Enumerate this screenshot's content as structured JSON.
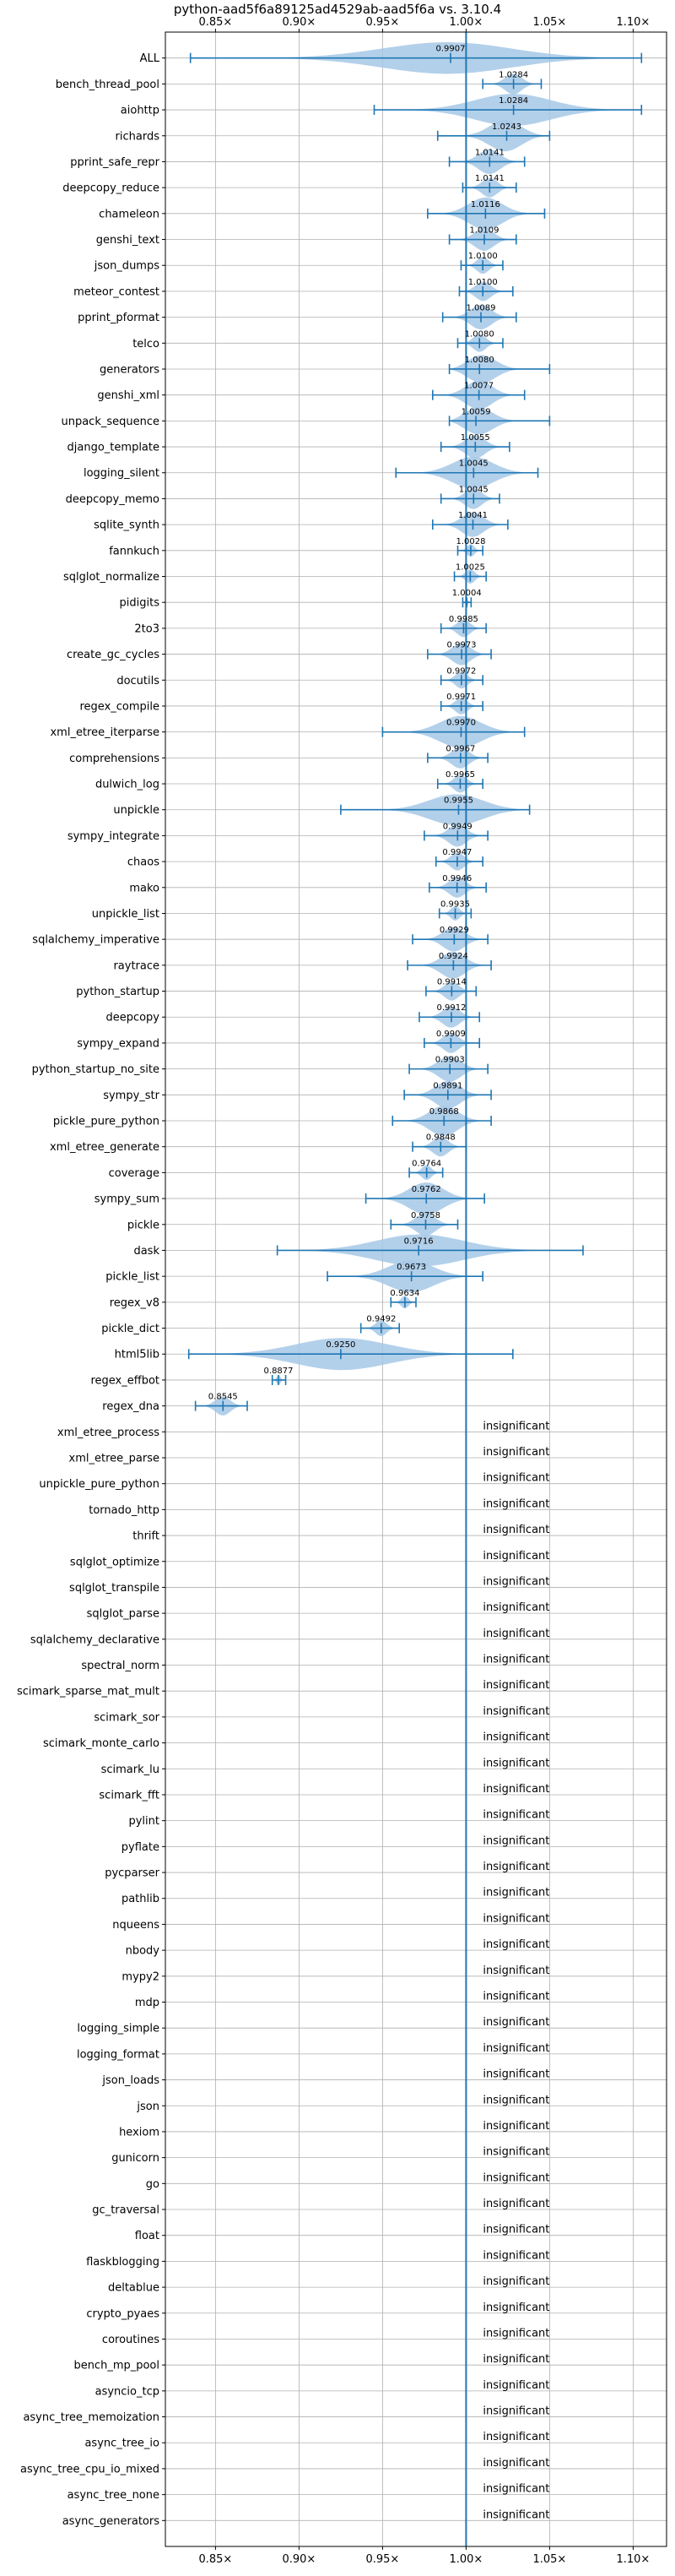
{
  "chart_data": {
    "type": "violin",
    "title": "python-aad5f6a89125ad4529ab-aad5f6a vs. 3.10.4",
    "xlim": [
      0.82,
      1.12
    ],
    "x_ticks": [
      {
        "value": 0.85,
        "label": "0.85×"
      },
      {
        "value": 0.9,
        "label": "0.90×"
      },
      {
        "value": 0.95,
        "label": "0.95×"
      },
      {
        "value": 1.0,
        "label": "1.00×"
      },
      {
        "value": 1.05,
        "label": "1.05×"
      },
      {
        "value": 1.1,
        "label": "1.10×"
      }
    ],
    "grid": true,
    "reference_line": 1.0,
    "colors": {
      "violin": "#a6c8e6",
      "line": "#1f77b4"
    },
    "insignificant_label": "insignificant",
    "benchmarks": [
      {
        "name": "ALL",
        "value": 0.9907,
        "label": "0.9907",
        "min": 0.835,
        "max": 1.105
      },
      {
        "name": "bench_thread_pool",
        "value": 1.0284,
        "label": "1.0284",
        "min": 1.01,
        "max": 1.045
      },
      {
        "name": "aiohttp",
        "value": 1.0284,
        "label": "1.0284",
        "min": 0.945,
        "max": 1.105
      },
      {
        "name": "richards",
        "value": 1.0243,
        "label": "1.0243",
        "min": 0.983,
        "max": 1.05
      },
      {
        "name": "pprint_safe_repr",
        "value": 1.0141,
        "label": "1.0141",
        "min": 0.99,
        "max": 1.035
      },
      {
        "name": "deepcopy_reduce",
        "value": 1.0141,
        "label": "1.0141",
        "min": 0.998,
        "max": 1.03
      },
      {
        "name": "chameleon",
        "value": 1.0116,
        "label": "1.0116",
        "min": 0.977,
        "max": 1.047
      },
      {
        "name": "genshi_text",
        "value": 1.0109,
        "label": "1.0109",
        "min": 0.99,
        "max": 1.03
      },
      {
        "name": "json_dumps",
        "value": 1.01,
        "label": "1.0100",
        "min": 0.997,
        "max": 1.022
      },
      {
        "name": "meteor_contest",
        "value": 1.01,
        "label": "1.0100",
        "min": 0.996,
        "max": 1.028
      },
      {
        "name": "pprint_pformat",
        "value": 1.0089,
        "label": "1.0089",
        "min": 0.986,
        "max": 1.03
      },
      {
        "name": "telco",
        "value": 1.008,
        "label": "1.0080",
        "min": 0.995,
        "max": 1.022
      },
      {
        "name": "generators",
        "value": 1.008,
        "label": "1.0080",
        "min": 0.99,
        "max": 1.05
      },
      {
        "name": "genshi_xml",
        "value": 1.0077,
        "label": "1.0077",
        "min": 0.98,
        "max": 1.035
      },
      {
        "name": "unpack_sequence",
        "value": 1.0059,
        "label": "1.0059",
        "min": 0.99,
        "max": 1.05
      },
      {
        "name": "django_template",
        "value": 1.0055,
        "label": "1.0055",
        "min": 0.985,
        "max": 1.026
      },
      {
        "name": "logging_silent",
        "value": 1.0045,
        "label": "1.0045",
        "min": 0.958,
        "max": 1.043
      },
      {
        "name": "deepcopy_memo",
        "value": 1.0045,
        "label": "1.0045",
        "min": 0.985,
        "max": 1.02
      },
      {
        "name": "sqlite_synth",
        "value": 1.0041,
        "label": "1.0041",
        "min": 0.98,
        "max": 1.025
      },
      {
        "name": "fannkuch",
        "value": 1.0028,
        "label": "1.0028",
        "min": 0.995,
        "max": 1.01
      },
      {
        "name": "sqlglot_normalize",
        "value": 1.0025,
        "label": "1.0025",
        "min": 0.993,
        "max": 1.012
      },
      {
        "name": "pidigits",
        "value": 1.0004,
        "label": "1.0004",
        "min": 0.998,
        "max": 1.003
      },
      {
        "name": "2to3",
        "value": 0.9985,
        "label": "0.9985",
        "min": 0.985,
        "max": 1.012
      },
      {
        "name": "create_gc_cycles",
        "value": 0.9973,
        "label": "0.9973",
        "min": 0.977,
        "max": 1.015
      },
      {
        "name": "docutils",
        "value": 0.9972,
        "label": "0.9972",
        "min": 0.985,
        "max": 1.01
      },
      {
        "name": "regex_compile",
        "value": 0.9971,
        "label": "0.9971",
        "min": 0.985,
        "max": 1.01
      },
      {
        "name": "xml_etree_iterparse",
        "value": 0.997,
        "label": "0.9970",
        "min": 0.95,
        "max": 1.035
      },
      {
        "name": "comprehensions",
        "value": 0.9967,
        "label": "0.9967",
        "min": 0.977,
        "max": 1.013
      },
      {
        "name": "dulwich_log",
        "value": 0.9965,
        "label": "0.9965",
        "min": 0.983,
        "max": 1.01
      },
      {
        "name": "unpickle",
        "value": 0.9955,
        "label": "0.9955",
        "min": 0.925,
        "max": 1.038
      },
      {
        "name": "sympy_integrate",
        "value": 0.9949,
        "label": "0.9949",
        "min": 0.975,
        "max": 1.013
      },
      {
        "name": "chaos",
        "value": 0.9947,
        "label": "0.9947",
        "min": 0.982,
        "max": 1.01
      },
      {
        "name": "mako",
        "value": 0.9946,
        "label": "0.9946",
        "min": 0.978,
        "max": 1.012
      },
      {
        "name": "unpickle_list",
        "value": 0.9935,
        "label": "0.9935",
        "min": 0.984,
        "max": 1.003
      },
      {
        "name": "sqlalchemy_imperative",
        "value": 0.9929,
        "label": "0.9929",
        "min": 0.968,
        "max": 1.013
      },
      {
        "name": "raytrace",
        "value": 0.9924,
        "label": "0.9924",
        "min": 0.965,
        "max": 1.015
      },
      {
        "name": "python_startup",
        "value": 0.9914,
        "label": "0.9914",
        "min": 0.976,
        "max": 1.006
      },
      {
        "name": "deepcopy",
        "value": 0.9912,
        "label": "0.9912",
        "min": 0.972,
        "max": 1.008
      },
      {
        "name": "sympy_expand",
        "value": 0.9909,
        "label": "0.9909",
        "min": 0.975,
        "max": 1.008
      },
      {
        "name": "python_startup_no_site",
        "value": 0.9903,
        "label": "0.9903",
        "min": 0.966,
        "max": 1.013
      },
      {
        "name": "sympy_str",
        "value": 0.9891,
        "label": "0.9891",
        "min": 0.963,
        "max": 1.015
      },
      {
        "name": "pickle_pure_python",
        "value": 0.9868,
        "label": "0.9868",
        "min": 0.956,
        "max": 1.015
      },
      {
        "name": "xml_etree_generate",
        "value": 0.9848,
        "label": "0.9848",
        "min": 0.968,
        "max": 1.0
      },
      {
        "name": "coverage",
        "value": 0.9764,
        "label": "0.9764",
        "min": 0.966,
        "max": 0.986
      },
      {
        "name": "sympy_sum",
        "value": 0.9762,
        "label": "0.9762",
        "min": 0.94,
        "max": 1.011
      },
      {
        "name": "pickle",
        "value": 0.9758,
        "label": "0.9758",
        "min": 0.955,
        "max": 0.995
      },
      {
        "name": "dask",
        "value": 0.9716,
        "label": "0.9716",
        "min": 0.887,
        "max": 1.07
      },
      {
        "name": "pickle_list",
        "value": 0.9673,
        "label": "0.9673",
        "min": 0.917,
        "max": 1.01
      },
      {
        "name": "regex_v8",
        "value": 0.9634,
        "label": "0.9634",
        "min": 0.955,
        "max": 0.97
      },
      {
        "name": "pickle_dict",
        "value": 0.9492,
        "label": "0.9492",
        "min": 0.937,
        "max": 0.96
      },
      {
        "name": "html5lib",
        "value": 0.925,
        "label": "0.9250",
        "min": 0.834,
        "max": 1.028
      },
      {
        "name": "regex_effbot",
        "value": 0.8877,
        "label": "0.8877",
        "min": 0.884,
        "max": 0.892
      },
      {
        "name": "regex_dna",
        "value": 0.8545,
        "label": "0.8545",
        "min": 0.838,
        "max": 0.869
      },
      {
        "name": "xml_etree_process",
        "value": null
      },
      {
        "name": "xml_etree_parse",
        "value": null
      },
      {
        "name": "unpickle_pure_python",
        "value": null
      },
      {
        "name": "tornado_http",
        "value": null
      },
      {
        "name": "thrift",
        "value": null
      },
      {
        "name": "sqlglot_optimize",
        "value": null
      },
      {
        "name": "sqlglot_transpile",
        "value": null
      },
      {
        "name": "sqlglot_parse",
        "value": null
      },
      {
        "name": "sqlalchemy_declarative",
        "value": null
      },
      {
        "name": "spectral_norm",
        "value": null
      },
      {
        "name": "scimark_sparse_mat_mult",
        "value": null
      },
      {
        "name": "scimark_sor",
        "value": null
      },
      {
        "name": "scimark_monte_carlo",
        "value": null
      },
      {
        "name": "scimark_lu",
        "value": null
      },
      {
        "name": "scimark_fft",
        "value": null
      },
      {
        "name": "pylint",
        "value": null
      },
      {
        "name": "pyflate",
        "value": null
      },
      {
        "name": "pycparser",
        "value": null
      },
      {
        "name": "pathlib",
        "value": null
      },
      {
        "name": "nqueens",
        "value": null
      },
      {
        "name": "nbody",
        "value": null
      },
      {
        "name": "mypy2",
        "value": null
      },
      {
        "name": "mdp",
        "value": null
      },
      {
        "name": "logging_simple",
        "value": null
      },
      {
        "name": "logging_format",
        "value": null
      },
      {
        "name": "json_loads",
        "value": null
      },
      {
        "name": "json",
        "value": null
      },
      {
        "name": "hexiom",
        "value": null
      },
      {
        "name": "gunicorn",
        "value": null
      },
      {
        "name": "go",
        "value": null
      },
      {
        "name": "gc_traversal",
        "value": null
      },
      {
        "name": "float",
        "value": null
      },
      {
        "name": "flaskblogging",
        "value": null
      },
      {
        "name": "deltablue",
        "value": null
      },
      {
        "name": "crypto_pyaes",
        "value": null
      },
      {
        "name": "coroutines",
        "value": null
      },
      {
        "name": "bench_mp_pool",
        "value": null
      },
      {
        "name": "asyncio_tcp",
        "value": null
      },
      {
        "name": "async_tree_memoization",
        "value": null
      },
      {
        "name": "async_tree_io",
        "value": null
      },
      {
        "name": "async_tree_cpu_io_mixed",
        "value": null
      },
      {
        "name": "async_tree_none",
        "value": null
      },
      {
        "name": "async_generators",
        "value": null
      }
    ]
  }
}
